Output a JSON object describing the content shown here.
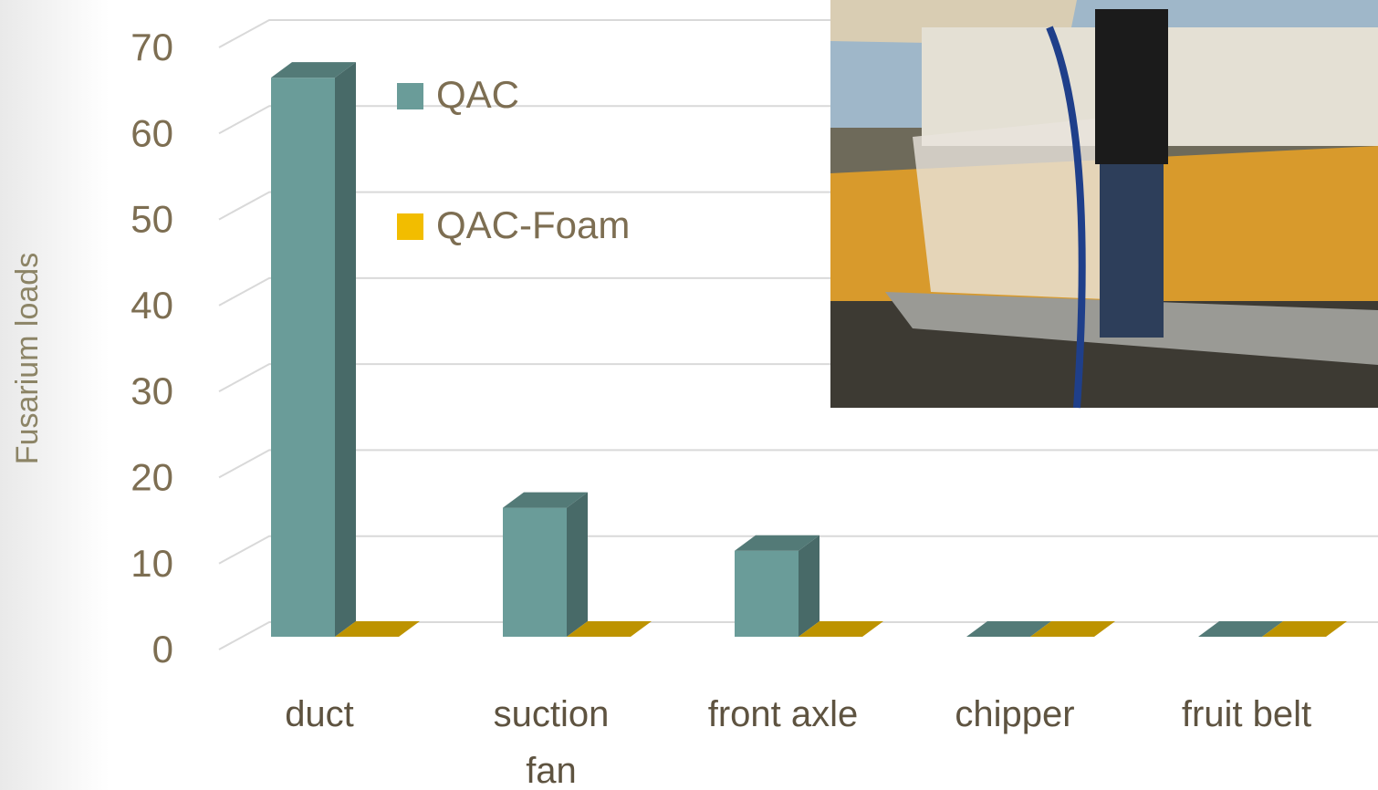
{
  "chart_data": {
    "type": "bar3d",
    "y_label": "Fusarium loads",
    "categories": [
      "duct",
      "suction fan",
      "front axle",
      "chipper",
      "fruit belt"
    ],
    "series": [
      {
        "name": "QAC",
        "color": "#6a9c99",
        "values": [
          65,
          15,
          10,
          0,
          0
        ]
      },
      {
        "name": "QAC-Foam",
        "color": "#f2bd00",
        "values": [
          0,
          0,
          0,
          0,
          0
        ]
      }
    ],
    "ylim": [
      0,
      70
    ],
    "yticks": [
      0,
      10,
      20,
      30,
      40,
      50,
      60,
      70
    ],
    "grid": true,
    "legend": "top-left"
  }
}
